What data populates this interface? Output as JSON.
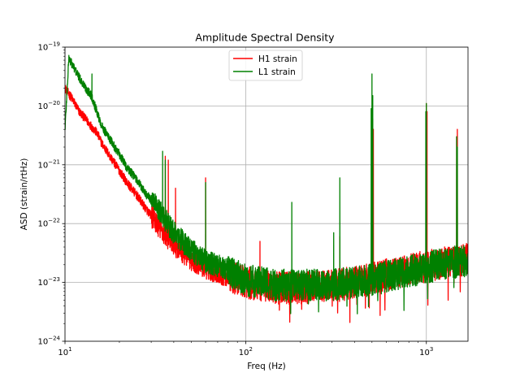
{
  "chart_data": {
    "type": "line",
    "title": "Amplitude Spectral Density",
    "xlabel": "Freq (Hz)",
    "ylabel": "ASD (strain/rtHz)",
    "xscale": "log",
    "yscale": "log",
    "xlim": [
      10,
      1700
    ],
    "ylim": [
      1e-24,
      1e-19
    ],
    "grid": true,
    "legend_position": "upper center",
    "x_ticks": [
      {
        "value": 10,
        "base": "10",
        "exp": "1"
      },
      {
        "value": 100,
        "base": "10",
        "exp": "2"
      },
      {
        "value": 1000,
        "base": "10",
        "exp": "3"
      }
    ],
    "y_ticks": [
      {
        "value": 1e-24,
        "base": "10",
        "exp": "−24"
      },
      {
        "value": 1e-23,
        "base": "10",
        "exp": "−23"
      },
      {
        "value": 1e-22,
        "base": "10",
        "exp": "−22"
      },
      {
        "value": 1e-21,
        "base": "10",
        "exp": "−21"
      },
      {
        "value": 1e-20,
        "base": "10",
        "exp": "−20"
      },
      {
        "value": 1e-19,
        "base": "10",
        "exp": "−19"
      }
    ],
    "series": [
      {
        "name": "H1 strain",
        "color": "#ff0000",
        "baseline": [
          [
            10,
            2e-20
          ],
          [
            11,
            1.3e-20
          ],
          [
            12,
            8e-21
          ],
          [
            13,
            6e-21
          ],
          [
            14,
            4.5e-21
          ],
          [
            15,
            3.5e-21
          ],
          [
            16,
            2.3e-21
          ],
          [
            18,
            1.3e-21
          ],
          [
            20,
            8e-22
          ],
          [
            22,
            5e-22
          ],
          [
            25,
            3e-22
          ],
          [
            28,
            1.8e-22
          ],
          [
            31,
            1.2e-22
          ],
          [
            35,
            7e-23
          ],
          [
            40,
            4.5e-23
          ],
          [
            50,
            2.5e-23
          ],
          [
            60,
            1.8e-23
          ],
          [
            80,
            1.3e-23
          ],
          [
            100,
            1e-23
          ],
          [
            150,
            8e-24
          ],
          [
            200,
            8e-24
          ],
          [
            300,
            9e-24
          ],
          [
            400,
            1e-23
          ],
          [
            500,
            1.2e-23
          ],
          [
            700,
            1.5e-23
          ],
          [
            1000,
            1.9e-23
          ],
          [
            1300,
            2.2e-23
          ],
          [
            1700,
            2.5e-23
          ]
        ],
        "peaks": [
          [
            35.9,
            1.4e-21
          ],
          [
            37.3,
            1.2e-21
          ],
          [
            40.9,
            4e-22
          ],
          [
            60,
            6e-22
          ],
          [
            120,
            5e-23
          ],
          [
            331.9,
            6e-23
          ],
          [
            500,
            8e-21
          ],
          [
            505,
            6e-21
          ],
          [
            509,
            4e-21
          ],
          [
            1000,
            1.1e-20
          ],
          [
            1009,
            8e-21
          ],
          [
            1471,
            3e-21
          ],
          [
            1484,
            4e-21
          ]
        ]
      },
      {
        "name": "L1 strain",
        "color": "#008000",
        "baseline": [
          [
            10,
            4e-21
          ],
          [
            10.5,
            6.5e-20
          ],
          [
            11,
            5e-20
          ],
          [
            12,
            3e-20
          ],
          [
            13,
            2e-20
          ],
          [
            14,
            1.5e-20
          ],
          [
            15,
            8e-21
          ],
          [
            16,
            4.5e-21
          ],
          [
            18,
            2.5e-21
          ],
          [
            20,
            1.5e-21
          ],
          [
            22,
            9e-22
          ],
          [
            25,
            5.5e-22
          ],
          [
            28,
            3.2e-22
          ],
          [
            31,
            2.2e-22
          ],
          [
            35,
            1.3e-22
          ],
          [
            40,
            7e-23
          ],
          [
            50,
            3.5e-23
          ],
          [
            60,
            2.3e-23
          ],
          [
            80,
            1.6e-23
          ],
          [
            100,
            1.1e-23
          ],
          [
            150,
            9e-24
          ],
          [
            200,
            9e-24
          ],
          [
            300,
            9e-24
          ],
          [
            400,
            1e-23
          ],
          [
            500,
            1.1e-23
          ],
          [
            700,
            1.4e-23
          ],
          [
            1000,
            1.8e-23
          ],
          [
            1300,
            2.1e-23
          ],
          [
            1700,
            2.4e-23
          ]
        ],
        "peaks": [
          [
            14.1,
            3.5e-20
          ],
          [
            34.7,
            1.7e-21
          ],
          [
            35.9,
            1.2e-21
          ],
          [
            60,
            5e-22
          ],
          [
            180,
            2.3e-22
          ],
          [
            307,
            7e-23
          ],
          [
            331.9,
            6e-22
          ],
          [
            495,
            9e-21
          ],
          [
            500,
            3.5e-20
          ],
          [
            505,
            1.5e-20
          ],
          [
            993,
            8e-21
          ],
          [
            1000,
            1.1e-20
          ],
          [
            1471,
            3e-21
          ],
          [
            1484,
            2e-21
          ]
        ]
      }
    ]
  }
}
